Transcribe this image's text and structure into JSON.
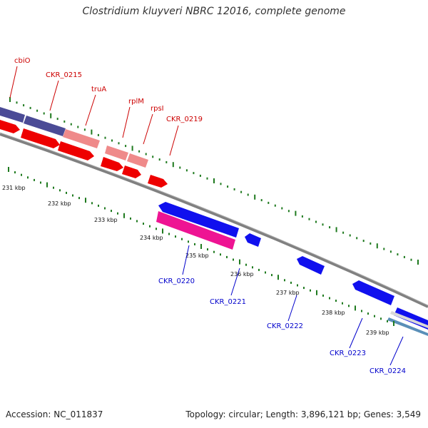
{
  "title": "Clostridium kluyveri NBRC 12016, complete genome",
  "footer": {
    "accession": "Accession: NC_011837",
    "topology": "Topology: circular; Length: 3,896,121 bp; Genes: 3,549"
  },
  "colors": {
    "forward_label": "#cc0000",
    "reverse_label": "#0000cc",
    "backbone": "#808080",
    "tick": "#1f7a1f"
  },
  "kbp_labels": [
    "231 kbp",
    "232 kbp",
    "233 kbp",
    "234 kbp",
    "235 kbp",
    "236 kbp",
    "237 kbp",
    "238 kbp",
    "239 kbp"
  ],
  "forward_genes": [
    {
      "label": "cbiO"
    },
    {
      "label": "CKR_0215"
    },
    {
      "label": "truA"
    },
    {
      "label": "rplM"
    },
    {
      "label": "rpsI"
    },
    {
      "label": "CKR_0219"
    }
  ],
  "reverse_genes": [
    {
      "label": "CKR_0220"
    },
    {
      "label": "CKR_0221"
    },
    {
      "label": "CKR_0222"
    },
    {
      "label": "CKR_0223"
    },
    {
      "label": "CKR_0224"
    }
  ]
}
